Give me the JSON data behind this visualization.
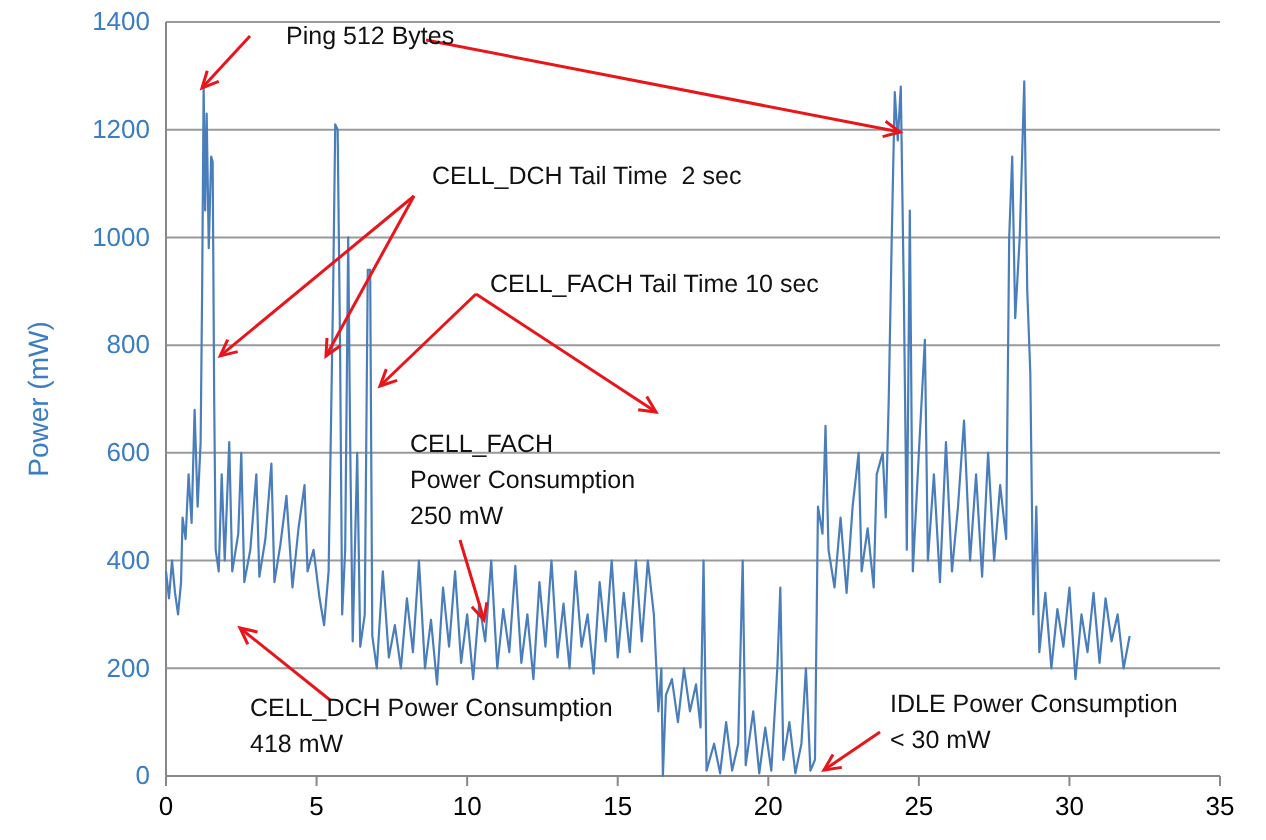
{
  "chart_data": {
    "type": "line",
    "ylabel": "Power (mW)",
    "xlim": [
      0,
      35
    ],
    "xticks": [
      0,
      5,
      10,
      15,
      20,
      25,
      30,
      35
    ],
    "ylim": [
      0,
      1400
    ],
    "yticks": [
      0,
      200,
      400,
      600,
      800,
      1000,
      1200,
      1400
    ],
    "grid": "y",
    "annotations": [
      "Ping 512 Bytes",
      {
        "text": "CELL_DCH Tail Time  2 sec",
        "x": 1.8,
        "y": 780
      },
      "CELL_FACH Tail Time 10 sec",
      "CELL_FACH\nPower Consumption\n250 mW",
      "CELL_DCH Power Consumption\n418 mW",
      "IDLE Power Consumption\n< 30 mW"
    ],
    "x": [
      0,
      0.1,
      0.2,
      0.3,
      0.4,
      0.5,
      0.55,
      0.65,
      0.75,
      0.85,
      0.95,
      1.05,
      1.15,
      1.2,
      1.25,
      1.3,
      1.35,
      1.42,
      1.5,
      1.55,
      1.6,
      1.65,
      1.75,
      1.85,
      1.95,
      2.1,
      2.2,
      2.4,
      2.5,
      2.6,
      2.8,
      3.0,
      3.1,
      3.3,
      3.5,
      3.6,
      3.8,
      4.0,
      4.2,
      4.4,
      4.6,
      4.7,
      4.9,
      5.1,
      5.25,
      5.4,
      5.55,
      5.62,
      5.7,
      5.78,
      5.85,
      5.95,
      6.05,
      6.12,
      6.2,
      6.35,
      6.45,
      6.6,
      6.7,
      6.78,
      6.85,
      7.0,
      7.2,
      7.4,
      7.6,
      7.8,
      8.0,
      8.2,
      8.4,
      8.6,
      8.8,
      9.0,
      9.2,
      9.4,
      9.6,
      9.8,
      10.0,
      10.2,
      10.4,
      10.6,
      10.8,
      11.0,
      11.2,
      11.4,
      11.6,
      11.8,
      12.0,
      12.2,
      12.4,
      12.6,
      12.8,
      13.0,
      13.2,
      13.4,
      13.6,
      13.8,
      14.0,
      14.2,
      14.4,
      14.6,
      14.8,
      15.0,
      15.2,
      15.4,
      15.6,
      15.8,
      16.0,
      16.2,
      16.35,
      16.45,
      16.5,
      16.6,
      16.8,
      17.0,
      17.2,
      17.4,
      17.6,
      17.75,
      17.85,
      17.95,
      18.2,
      18.4,
      18.6,
      18.8,
      19.0,
      19.15,
      19.25,
      19.5,
      19.7,
      19.9,
      20.1,
      20.3,
      20.4,
      20.5,
      20.7,
      20.9,
      21.1,
      21.25,
      21.4,
      21.55,
      21.65,
      21.8,
      21.9,
      22.0,
      22.2,
      22.4,
      22.6,
      22.8,
      23.0,
      23.1,
      23.3,
      23.5,
      23.6,
      23.8,
      23.9,
      24.0,
      24.1,
      24.2,
      24.3,
      24.4,
      24.5,
      24.6,
      24.7,
      24.8,
      25.0,
      25.2,
      25.3,
      25.5,
      25.7,
      25.9,
      26.1,
      26.3,
      26.5,
      26.7,
      26.9,
      27.1,
      27.3,
      27.5,
      27.7,
      27.9,
      28.0,
      28.1,
      28.2,
      28.35,
      28.5,
      28.6,
      28.7,
      28.8,
      28.9,
      29.0,
      29.2,
      29.4,
      29.6,
      29.8,
      30.0,
      30.2,
      30.4,
      30.6,
      30.8,
      31.0,
      31.2,
      31.4,
      31.6,
      31.8,
      32.0
    ],
    "series": [
      {
        "color": "#4a7ebb",
        "values": [
          380,
          330,
          400,
          340,
          300,
          360,
          480,
          440,
          560,
          470,
          680,
          500,
          620,
          900,
          1280,
          1050,
          1230,
          980,
          1150,
          1140,
          700,
          420,
          380,
          560,
          400,
          620,
          380,
          450,
          600,
          360,
          420,
          560,
          370,
          440,
          580,
          360,
          430,
          520,
          350,
          460,
          540,
          380,
          420,
          330,
          280,
          380,
          900,
          1210,
          1200,
          800,
          300,
          420,
          1000,
          600,
          250,
          600,
          240,
          300,
          940,
          940,
          260,
          200,
          380,
          220,
          280,
          200,
          330,
          230,
          400,
          200,
          290,
          170,
          350,
          240,
          380,
          210,
          300,
          180,
          320,
          250,
          400,
          200,
          310,
          230,
          390,
          210,
          300,
          180,
          360,
          240,
          400,
          220,
          320,
          200,
          380,
          240,
          300,
          190,
          360,
          250,
          400,
          220,
          340,
          230,
          400,
          250,
          400,
          300,
          120,
          200,
          0,
          150,
          180,
          100,
          200,
          120,
          170,
          90,
          400,
          10,
          60,
          5,
          100,
          10,
          60,
          400,
          20,
          120,
          5,
          90,
          10,
          200,
          350,
          30,
          100,
          5,
          60,
          200,
          10,
          30,
          500,
          450,
          650,
          420,
          350,
          480,
          340,
          500,
          600,
          380,
          460,
          350,
          560,
          600,
          480,
          700,
          1000,
          1270,
          1180,
          1280,
          900,
          420,
          1050,
          380,
          600,
          810,
          400,
          560,
          360,
          620,
          380,
          500,
          660,
          400,
          560,
          370,
          600,
          400,
          540,
          440,
          1000,
          1150,
          850,
          1000,
          1290,
          900,
          750,
          300,
          500,
          230,
          340,
          200,
          310,
          240,
          350,
          180,
          300,
          230,
          340,
          210,
          330,
          250,
          300,
          200,
          260
        ]
      }
    ]
  }
}
